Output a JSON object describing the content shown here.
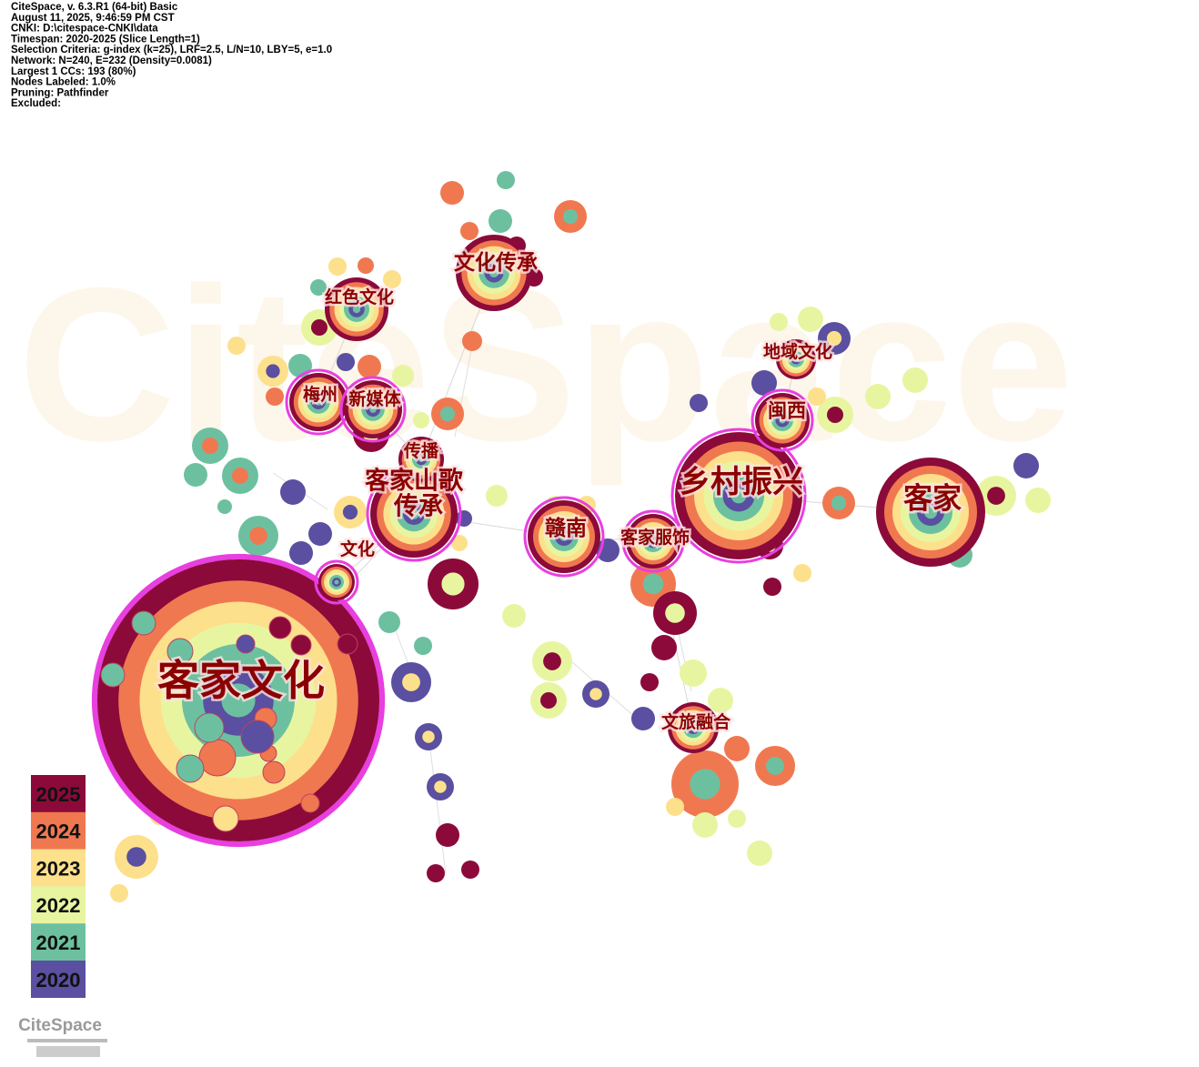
{
  "header": {
    "lines": [
      "CiteSpace, v. 6.3.R1 (64-bit) Basic",
      "August 11, 2025, 9:46:59 PM CST",
      "CNKI: D:\\citespace-CNKI\\data",
      "Timespan: 2020-2025 (Slice Length=1)",
      "Selection Criteria: g-index (k=25), LRF=2.5, L/N=10, LBY=5, e=1.0",
      "Network: N=240, E=232 (Density=0.0081)",
      "Largest 1 CCs: 193 (80%)",
      "Nodes Labeled: 1.0%",
      "Pruning: Pathfinder",
      "Excluded:"
    ]
  },
  "watermark": "CiteSpace",
  "nodes": [
    {
      "label": "客家文化"
    },
    {
      "label": "乡村振兴"
    },
    {
      "label": "客家"
    },
    {
      "label": "客家山歌"
    },
    {
      "label": "传承"
    },
    {
      "label": "文化传承"
    },
    {
      "label": "红色文化"
    },
    {
      "label": "梅州"
    },
    {
      "label": "新媒体"
    },
    {
      "label": "传播"
    },
    {
      "label": "赣南"
    },
    {
      "label": "客家服饰"
    },
    {
      "label": "文化"
    },
    {
      "label": "地域文化"
    },
    {
      "label": "闽西"
    },
    {
      "label": "文旅融合"
    }
  ],
  "legend": {
    "years": [
      "2025",
      "2024",
      "2023",
      "2022",
      "2021",
      "2020"
    ]
  },
  "logo": "CiteSpace"
}
